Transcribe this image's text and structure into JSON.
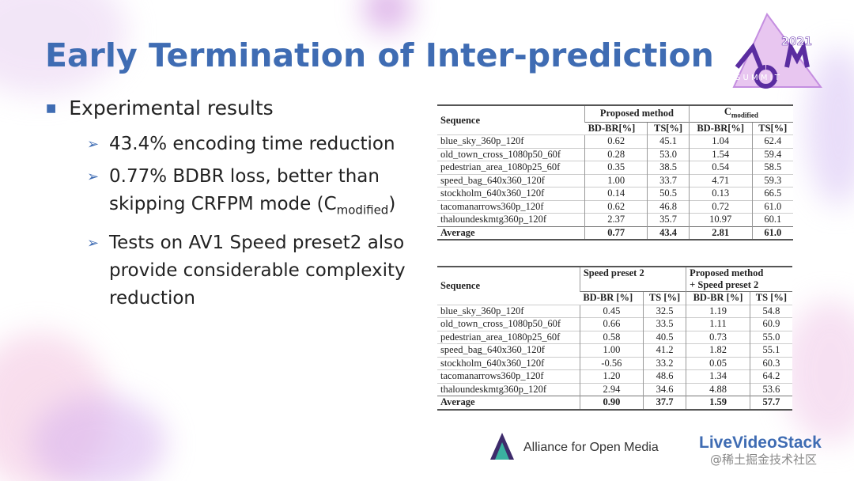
{
  "title": "Early Termination of Inter-prediction",
  "bullets": {
    "main": "Experimental results",
    "items": [
      {
        "text": "43.4% encoding time reduction"
      },
      {
        "text": "0.77% BDBR loss, better than skipping CRFPM mode (C",
        "sub": "modified",
        "after": ")"
      },
      {
        "text": "Tests on AV1 Speed preset2 also provide considerable complexity reduction"
      }
    ]
  },
  "table1": {
    "sequence_header": "Sequence",
    "group1": "Proposed method",
    "group2": {
      "text": "C",
      "sub": "modified"
    },
    "columns": [
      "BD-BR[%]",
      "TS[%]",
      "BD-BR[%]",
      "TS[%]"
    ],
    "rows": [
      [
        "blue_sky_360p_120f",
        "0.62",
        "45.1",
        "1.04",
        "62.4"
      ],
      [
        "old_town_cross_1080p50_60f",
        "0.28",
        "53.0",
        "1.54",
        "59.4"
      ],
      [
        "pedestrian_area_1080p25_60f",
        "0.35",
        "38.5",
        "0.54",
        "58.5"
      ],
      [
        "speed_bag_640x360_120f",
        "1.00",
        "33.7",
        "4.71",
        "59.3"
      ],
      [
        "stockholm_640x360_120f",
        "0.14",
        "50.5",
        "0.13",
        "66.5"
      ],
      [
        "tacomanarrows360p_120f",
        "0.62",
        "46.8",
        "0.72",
        "61.0"
      ],
      [
        "thaloundeskmtg360p_120f",
        "2.37",
        "35.7",
        "10.97",
        "60.1"
      ]
    ],
    "average": [
      "Average",
      "0.77",
      "43.4",
      "2.81",
      "61.0"
    ]
  },
  "table2": {
    "sequence_header": "Sequence",
    "group1": "Speed preset 2",
    "group2_line1": "Proposed  method",
    "group2_line2": "+ Speed preset 2",
    "columns": [
      "BD-BR [%]",
      "TS [%]",
      "BD-BR [%]",
      "TS [%]"
    ],
    "rows": [
      [
        "blue_sky_360p_120f",
        "0.45",
        "32.5",
        "1.19",
        "54.8"
      ],
      [
        "old_town_cross_1080p50_60f",
        "0.66",
        "33.5",
        "1.11",
        "60.9"
      ],
      [
        "pedestrian_area_1080p25_60f",
        "0.58",
        "40.5",
        "0.73",
        "55.0"
      ],
      [
        "speed_bag_640x360_120f",
        "1.00",
        "41.2",
        "1.82",
        "55.1"
      ],
      [
        "stockholm_640x360_120f",
        "-0.56",
        "33.2",
        "0.05",
        "60.3"
      ],
      [
        "tacomanarrows360p_120f",
        "1.20",
        "48.6",
        "1.34",
        "64.2"
      ],
      [
        "thaloundeskmtg360p_120f",
        "2.94",
        "34.6",
        "4.88",
        "53.6"
      ]
    ],
    "average": [
      "Average",
      "0.90",
      "37.7",
      "1.59",
      "57.7"
    ]
  },
  "logo": {
    "year": "2021",
    "summit": "S U M M I T"
  },
  "footer": {
    "alliance": "Alliance for Open Media",
    "livevideostack": "LiveVideoStack",
    "watermark": "@稀土掘金技术社区"
  }
}
